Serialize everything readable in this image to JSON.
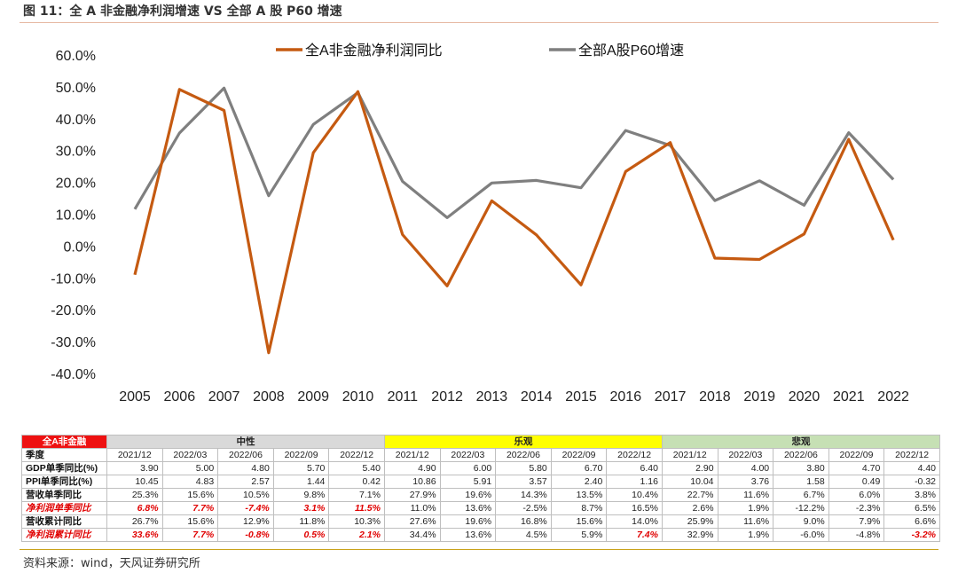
{
  "figure_title": "图 11：全 A 非金融净利润增速 VS 全部 A 股 P60 增速",
  "source_text": "资料来源：wind，天风证券研究所",
  "chart_data": {
    "type": "line",
    "x": [
      "2005",
      "2006",
      "2007",
      "2008",
      "2009",
      "2010",
      "2011",
      "2012",
      "2013",
      "2014",
      "2015",
      "2016",
      "2017",
      "2018",
      "2019",
      "2020",
      "2021",
      "2022"
    ],
    "ylim": [
      -40,
      60
    ],
    "y_ticks": [
      "60.0%",
      "50.0%",
      "40.0%",
      "30.0%",
      "20.0%",
      "10.0%",
      "0.0%",
      "-10.0%",
      "-20.0%",
      "-30.0%",
      "-40.0%"
    ],
    "grid": false,
    "legend_position": "top",
    "series": [
      {
        "name": "全A非金融净利润同比",
        "color": "#c55a11",
        "values": [
          -9.0,
          49.2,
          42.6,
          -33.5,
          29.3,
          48.5,
          3.6,
          -12.5,
          14.2,
          3.5,
          -12.2,
          23.4,
          32.5,
          -3.8,
          -4.2,
          3.8,
          33.5,
          1.9
        ]
      },
      {
        "name": "全部A股P60增速",
        "color": "#7f7f7f",
        "values": [
          11.6,
          35.5,
          49.6,
          15.8,
          38.2,
          48.2,
          20.3,
          8.9,
          19.8,
          20.6,
          18.3,
          36.3,
          31.6,
          14.3,
          20.5,
          12.8,
          35.6,
          20.9
        ]
      }
    ]
  },
  "table": {
    "corner": "全A非金融",
    "groups": [
      "中性",
      "乐观",
      "悲观"
    ],
    "header_label": "季度",
    "quarters": [
      "2021/12",
      "2022/03",
      "2022/06",
      "2022/09",
      "2022/12",
      "2021/12",
      "2022/03",
      "2022/06",
      "2022/09",
      "2022/12",
      "2021/12",
      "2022/03",
      "2022/06",
      "2022/09",
      "2022/12"
    ],
    "rows": [
      {
        "label": "GDP单季同比(%)",
        "highlight": false,
        "values": [
          "3.90",
          "5.00",
          "4.80",
          "5.70",
          "5.40",
          "4.90",
          "6.00",
          "5.80",
          "6.70",
          "6.40",
          "2.90",
          "4.00",
          "3.80",
          "4.70",
          "4.40"
        ]
      },
      {
        "label": "PPI单季同比(%)",
        "highlight": false,
        "values": [
          "10.45",
          "4.83",
          "2.57",
          "1.44",
          "0.42",
          "10.86",
          "5.91",
          "3.57",
          "2.40",
          "1.16",
          "10.04",
          "3.76",
          "1.58",
          "0.49",
          "-0.32"
        ]
      },
      {
        "label": "营收单季同比",
        "highlight": false,
        "values": [
          "25.3%",
          "15.6%",
          "10.5%",
          "9.8%",
          "7.1%",
          "27.9%",
          "19.6%",
          "14.3%",
          "13.5%",
          "10.4%",
          "22.7%",
          "11.6%",
          "6.7%",
          "6.0%",
          "3.8%"
        ]
      },
      {
        "label": "净利润单季同比",
        "highlight": true,
        "values": [
          "6.8%",
          "7.7%",
          "-7.4%",
          "3.1%",
          "11.5%",
          "11.0%",
          "13.6%",
          "-2.5%",
          "8.7%",
          "16.5%",
          "2.6%",
          "1.9%",
          "-12.2%",
          "-2.3%",
          "6.5%"
        ]
      },
      {
        "label": "营收累计同比",
        "highlight": false,
        "values": [
          "26.7%",
          "15.6%",
          "12.9%",
          "11.8%",
          "10.3%",
          "27.6%",
          "19.6%",
          "16.8%",
          "15.6%",
          "14.0%",
          "25.9%",
          "11.6%",
          "9.0%",
          "7.9%",
          "6.6%"
        ]
      },
      {
        "label": "净利润累计同比",
        "highlight": true,
        "values": [
          "33.6%",
          "7.7%",
          "-0.8%",
          "0.5%",
          "2.1%",
          "34.4%",
          "13.6%",
          "4.5%",
          "5.9%",
          "7.4%",
          "32.9%",
          "1.9%",
          "-6.0%",
          "-4.8%",
          "-3.2%"
        ]
      }
    ],
    "red_cells": [
      [
        3,
        0
      ],
      [
        3,
        1
      ],
      [
        3,
        2
      ],
      [
        3,
        3
      ],
      [
        3,
        4
      ],
      [
        5,
        0
      ],
      [
        5,
        1
      ],
      [
        5,
        2
      ],
      [
        5,
        3
      ],
      [
        5,
        4
      ],
      [
        5,
        9
      ],
      [
        5,
        14
      ]
    ]
  }
}
